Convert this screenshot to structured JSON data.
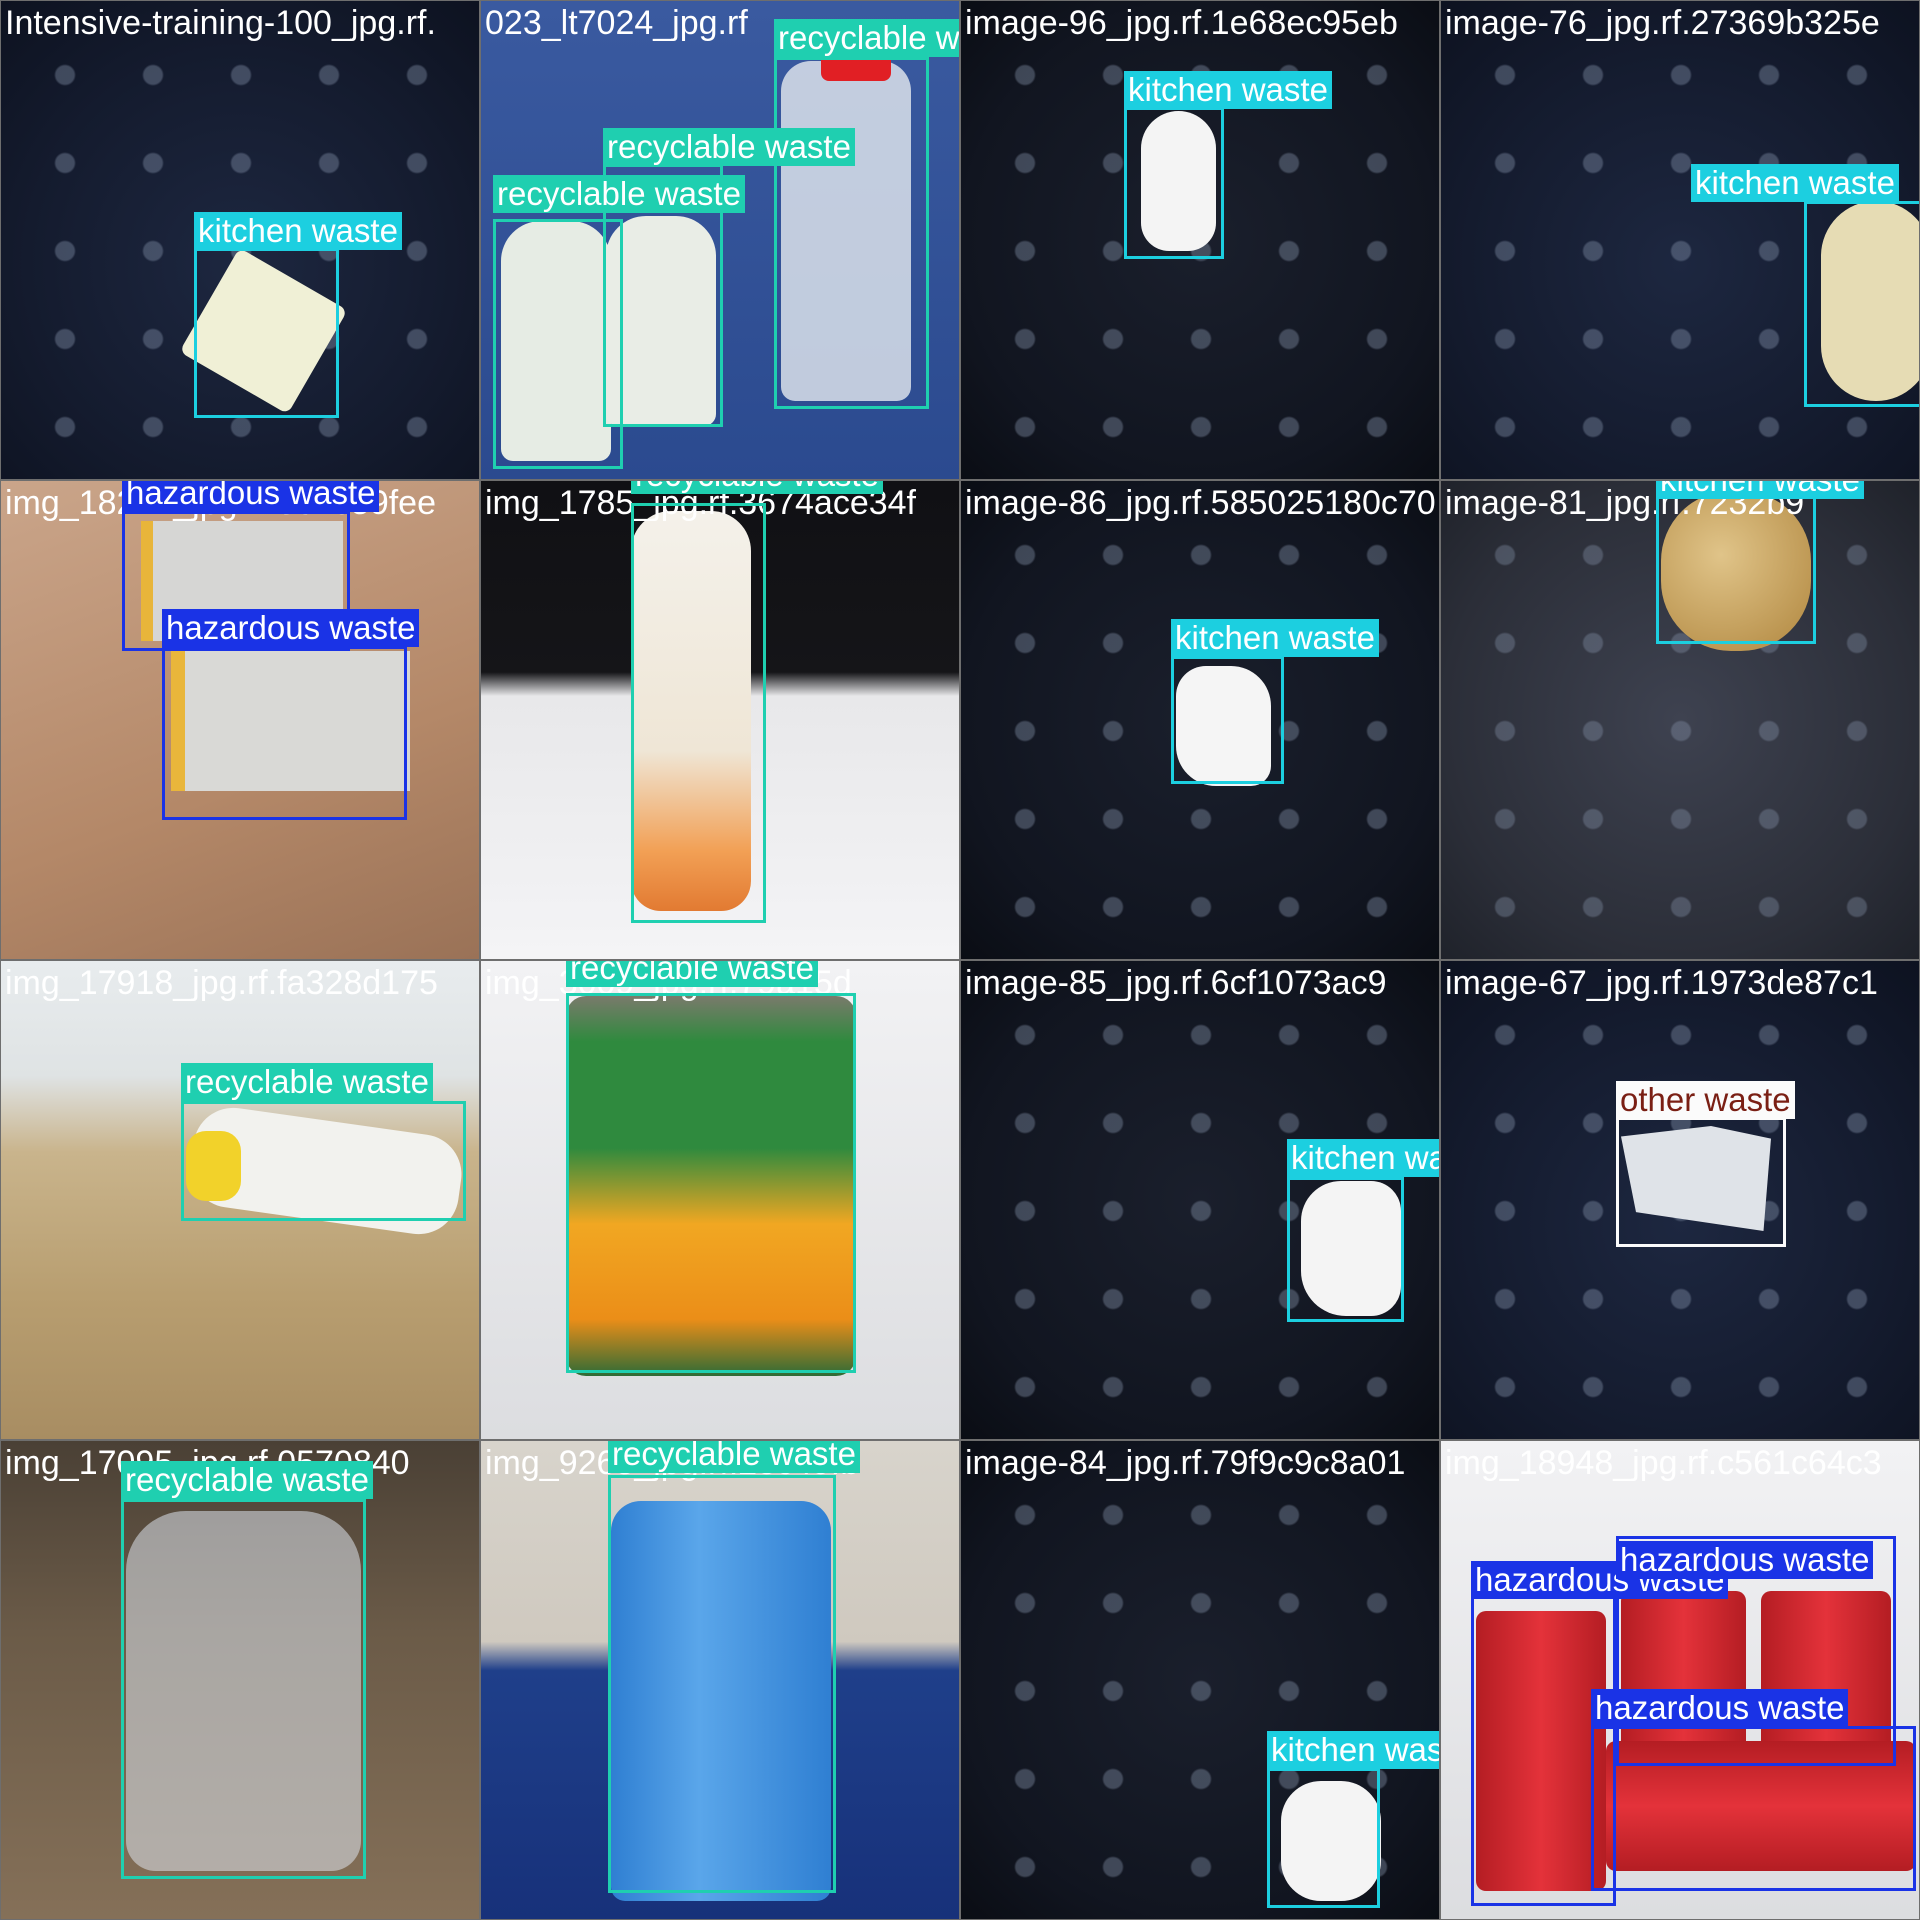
{
  "colors": {
    "recyclable": "#1fcfb0",
    "kitchen": "#1ccfe0",
    "hazardous": "#1a33e6",
    "other": "#7a1f14",
    "other_bg": "#fbfbfb"
  },
  "tiles": [
    {
      "filename": "Intensive-training-100_jpg.rf.",
      "labels": [
        "kitchen waste"
      ]
    },
    {
      "filename": "023_lt7024_jpg.rf",
      "labels": [
        "recyclable waste",
        "recyclable waste",
        "recyclable waste"
      ]
    },
    {
      "filename": "image-96_jpg.rf.1e68ec95eb",
      "labels": [
        "kitchen waste"
      ]
    },
    {
      "filename": "image-76_jpg.rf.27369b325e",
      "labels": [
        "kitchen waste"
      ]
    },
    {
      "filename": "img_18244_jpg.rf.8c4659fee",
      "labels": [
        "hazardous waste",
        "hazardous waste"
      ]
    },
    {
      "filename": "img_1785_jpg.rf.3674ace34f",
      "labels": [
        "recyclable waste"
      ]
    },
    {
      "filename": "image-86_jpg.rf.585025180c70",
      "labels": [
        "kitchen waste"
      ]
    },
    {
      "filename": "image-81_jpg.rf.7232b9",
      "labels": [
        "kitchen waste"
      ]
    },
    {
      "filename": "img_17918_jpg.rf.fa328d175",
      "labels": [
        "recyclable waste"
      ]
    },
    {
      "filename": "img_3009_jpg.rf.79a15d",
      "labels": [
        "recyclable waste"
      ]
    },
    {
      "filename": "image-85_jpg.rf.6cf1073ac9",
      "labels": [
        "kitchen waste"
      ]
    },
    {
      "filename": "image-67_jpg.rf.1973de87c1",
      "labels": [
        "other waste"
      ]
    },
    {
      "filename": "img_17095_jpg.rf.0570840",
      "labels": [
        "recyclable waste"
      ]
    },
    {
      "filename": "img_9268_jpg.rf.2ec49fb",
      "labels": [
        "recyclable waste"
      ]
    },
    {
      "filename": "image-84_jpg.rf.79f9c9c8a01",
      "labels": [
        "kitchen waste"
      ]
    },
    {
      "filename": "img_18948_jpg.rf.c561c64c3",
      "labels": [
        "hazardous waste",
        "hazardous waste",
        "hazardous waste"
      ]
    }
  ]
}
